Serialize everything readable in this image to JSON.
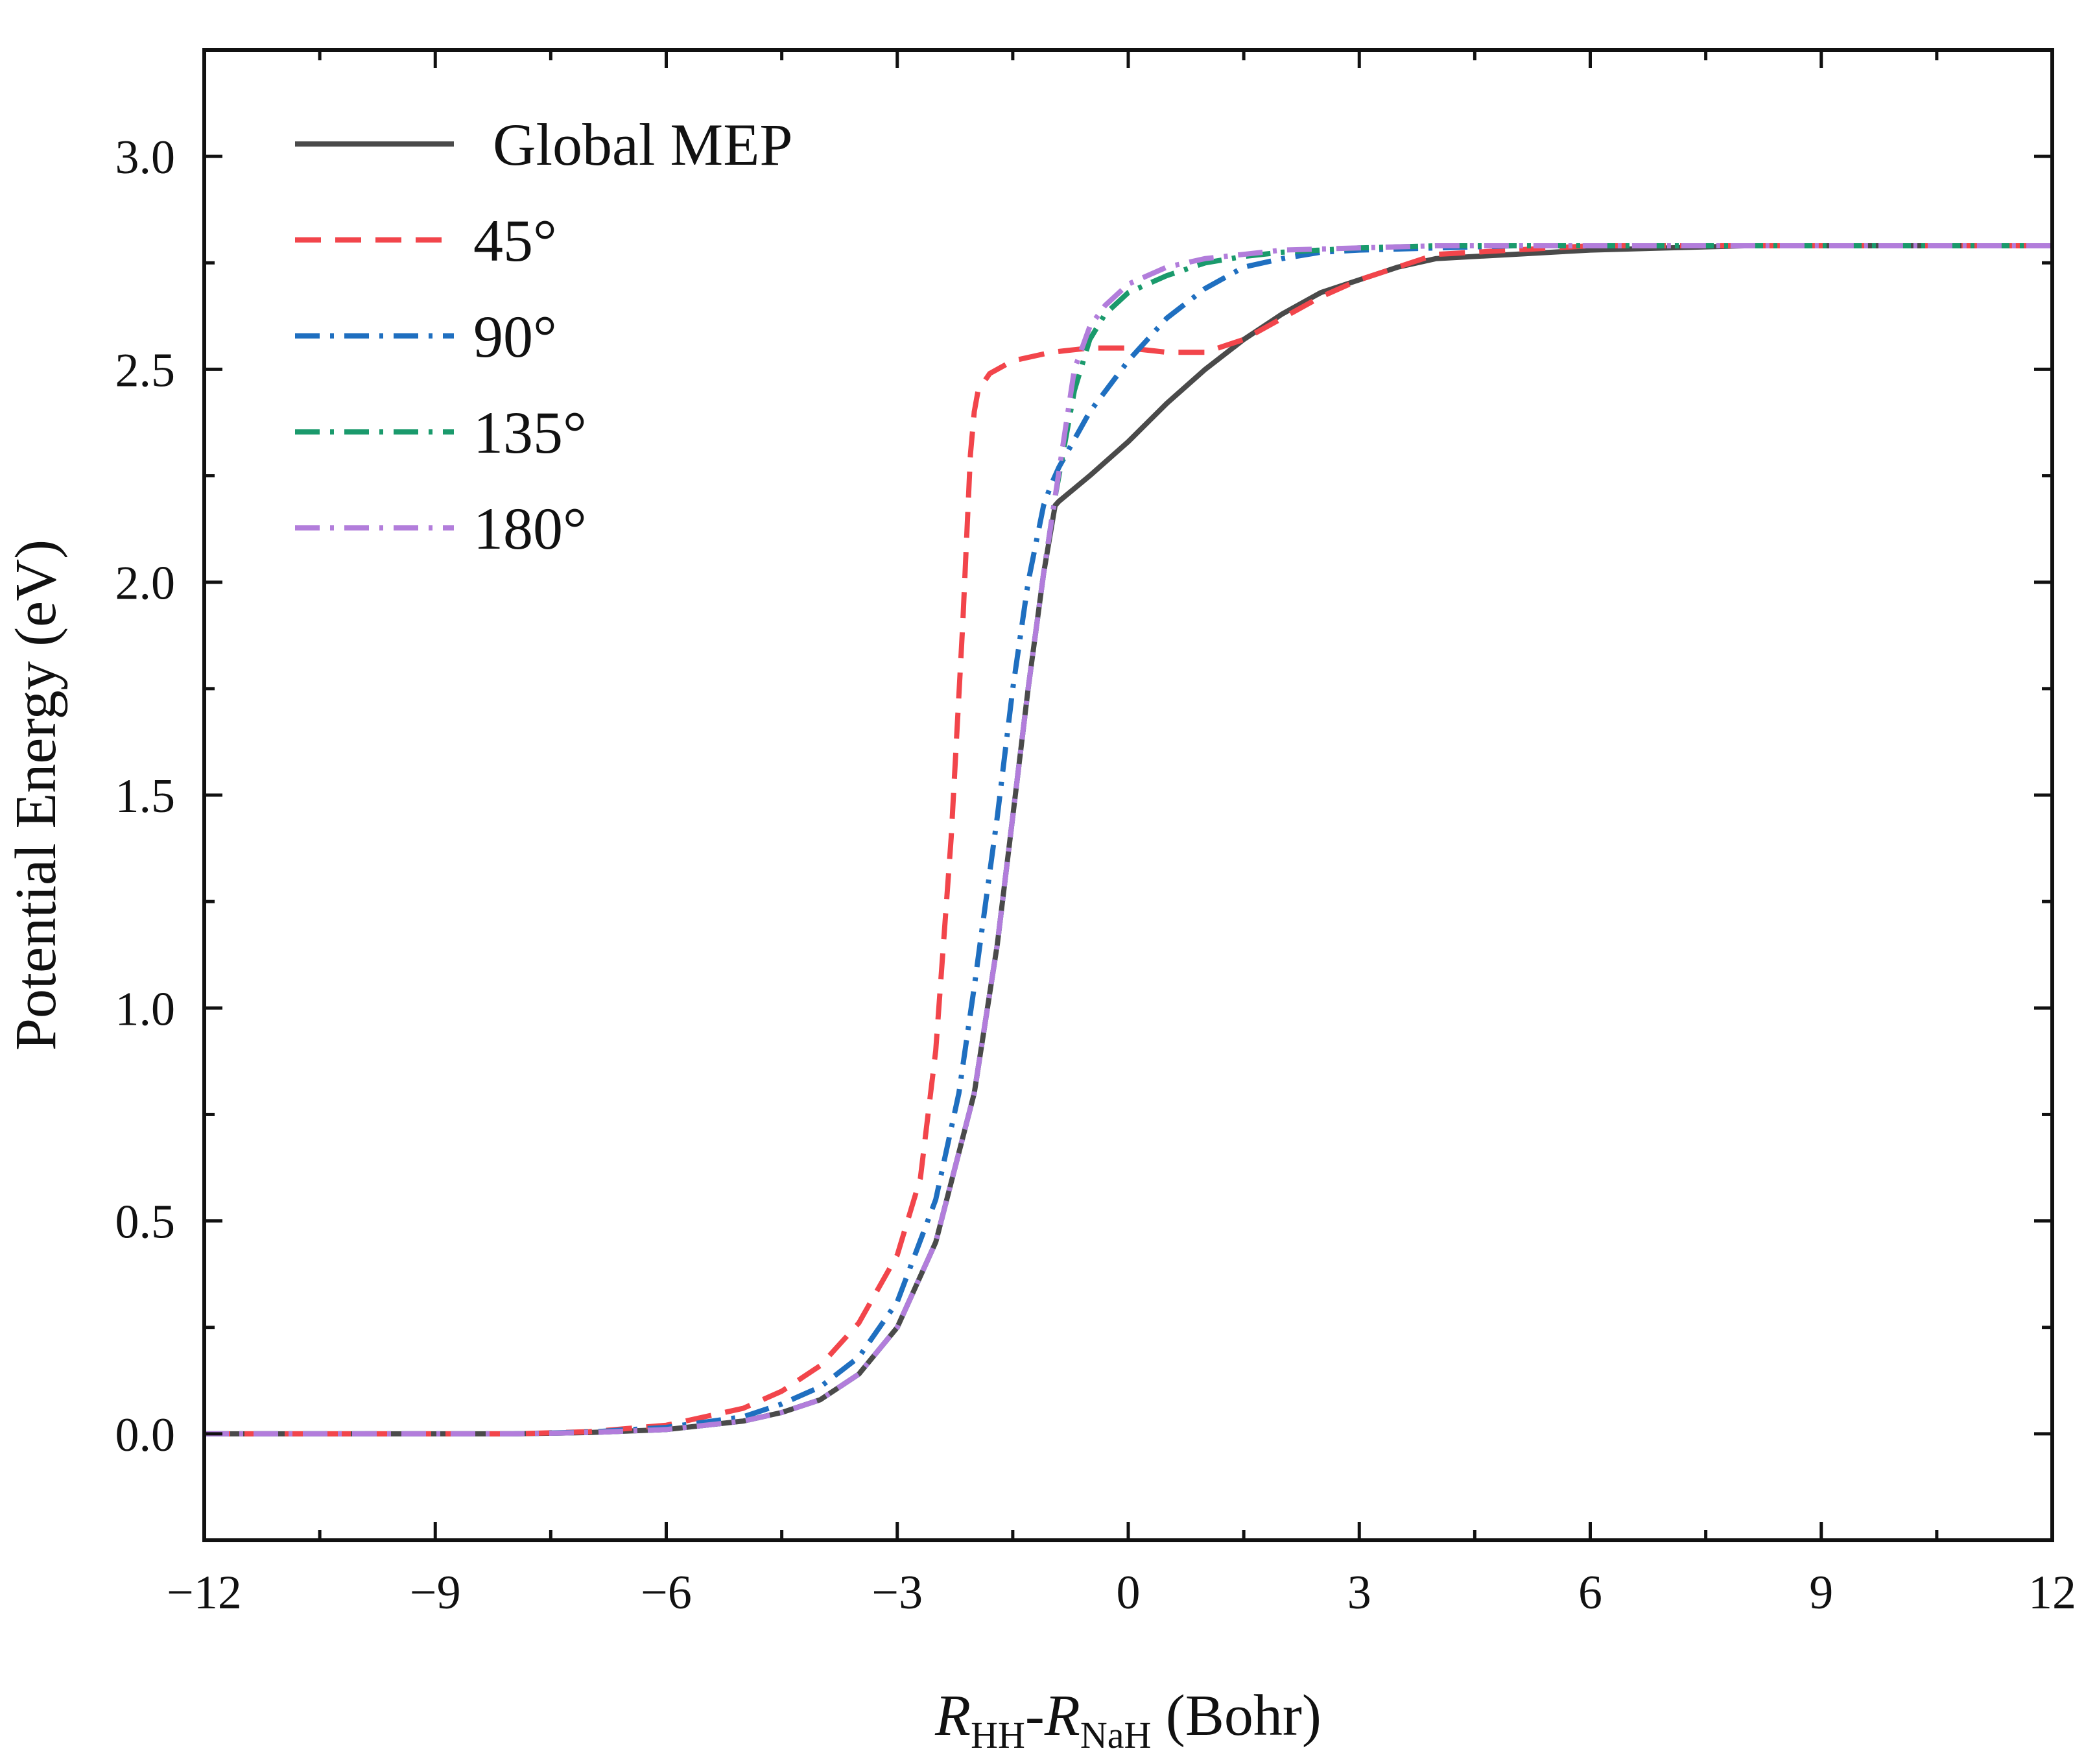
{
  "chart_data": {
    "type": "line",
    "title": "",
    "xlabel_parts": {
      "r1": "R",
      "sub1": "HH",
      "dash": "-",
      "r2": "R",
      "sub2": "NaH",
      "unit": " (Bohr)"
    },
    "ylabel": "Potential Energy (eV)",
    "xlim": [
      -12,
      12
    ],
    "ylim": [
      -0.25,
      3.25
    ],
    "xticks": [
      -12,
      -9,
      -6,
      -3,
      0,
      3,
      6,
      9,
      12
    ],
    "xtick_labels": [
      "−12",
      "−9",
      "−6",
      "−3",
      "0",
      "3",
      "6",
      "9",
      "12"
    ],
    "yticks": [
      0.0,
      0.5,
      1.0,
      1.5,
      2.0,
      2.5,
      3.0
    ],
    "ytick_labels": [
      "0.0",
      "0.5",
      "1.0",
      "1.5",
      "2.0",
      "2.5",
      "3.0"
    ],
    "grid": false,
    "legend_position": "top-left",
    "series": [
      {
        "name": "Global MEP",
        "color": "#4a4a4a",
        "dash": "solid",
        "x": [
          -12,
          -8,
          -7,
          -6,
          -5,
          -4.5,
          -4,
          -3.5,
          -3,
          -2.5,
          -2,
          -1.7,
          -1.5,
          -1.3,
          -1.1,
          -0.95,
          -0.9,
          -0.5,
          0,
          0.5,
          1,
          1.5,
          2,
          2.5,
          3,
          3.5,
          4,
          5,
          6,
          8,
          10,
          12
        ],
        "y": [
          0,
          0,
          0.003,
          0.01,
          0.03,
          0.05,
          0.08,
          0.14,
          0.25,
          0.45,
          0.8,
          1.15,
          1.45,
          1.75,
          2.02,
          2.18,
          2.19,
          2.25,
          2.33,
          2.42,
          2.5,
          2.57,
          2.63,
          2.68,
          2.71,
          2.74,
          2.76,
          2.77,
          2.78,
          2.79,
          2.79,
          2.79
        ]
      },
      {
        "name": "45°",
        "color": "#f2454b",
        "dash": "dashed",
        "x": [
          -12,
          -8,
          -7,
          -6,
          -5,
          -4.5,
          -4,
          -3.5,
          -3,
          -2.7,
          -2.5,
          -2.3,
          -2.15,
          -2.05,
          -2,
          -1.95,
          -1.8,
          -1.5,
          -1,
          -0.5,
          0,
          0.5,
          1,
          1.5,
          2,
          2.5,
          3,
          3.5,
          4,
          5,
          6,
          8,
          10,
          12
        ],
        "y": [
          0,
          0,
          0.005,
          0.02,
          0.06,
          0.1,
          0.16,
          0.26,
          0.42,
          0.6,
          0.9,
          1.4,
          1.9,
          2.3,
          2.4,
          2.45,
          2.49,
          2.52,
          2.54,
          2.55,
          2.55,
          2.54,
          2.54,
          2.57,
          2.62,
          2.67,
          2.71,
          2.74,
          2.77,
          2.78,
          2.79,
          2.79,
          2.79,
          2.79
        ]
      },
      {
        "name": "90°",
        "color": "#1f6fc0",
        "dash": "dashdot",
        "x": [
          -12,
          -8,
          -7,
          -6,
          -5,
          -4.5,
          -4,
          -3.5,
          -3,
          -2.5,
          -2.2,
          -2,
          -1.7,
          -1.5,
          -1.3,
          -1.1,
          -1.0,
          -0.9,
          -0.5,
          0,
          0.5,
          1,
          1.5,
          2,
          2.5,
          3,
          4,
          5,
          6,
          8,
          10,
          12
        ],
        "y": [
          0,
          0,
          0.004,
          0.015,
          0.04,
          0.07,
          0.11,
          0.18,
          0.31,
          0.55,
          0.8,
          1.05,
          1.45,
          1.75,
          2.0,
          2.18,
          2.23,
          2.27,
          2.4,
          2.52,
          2.62,
          2.69,
          2.74,
          2.76,
          2.775,
          2.78,
          2.785,
          2.79,
          2.79,
          2.79,
          2.79,
          2.79
        ]
      },
      {
        "name": "135°",
        "color": "#1a9a6c",
        "dash": "dashdot",
        "x": [
          -12,
          -8,
          -7,
          -6,
          -5,
          -4.5,
          -4,
          -3.5,
          -3,
          -2.5,
          -2,
          -1.7,
          -1.5,
          -1.3,
          -1.1,
          -0.95,
          -0.85,
          -0.7,
          -0.5,
          -0.3,
          0,
          0.5,
          1,
          1.5,
          2,
          3,
          4,
          6,
          8,
          10,
          12
        ],
        "y": [
          0,
          0,
          0.003,
          0.01,
          0.03,
          0.05,
          0.08,
          0.14,
          0.25,
          0.45,
          0.8,
          1.15,
          1.45,
          1.75,
          2.02,
          2.2,
          2.3,
          2.45,
          2.57,
          2.63,
          2.68,
          2.72,
          2.75,
          2.765,
          2.775,
          2.785,
          2.79,
          2.79,
          2.79,
          2.79,
          2.79
        ]
      },
      {
        "name": "180°",
        "color": "#b27ddb",
        "dash": "dashdot",
        "x": [
          -12,
          -8,
          -7,
          -6,
          -5,
          -4.5,
          -4,
          -3.5,
          -3,
          -2.5,
          -2,
          -1.7,
          -1.5,
          -1.3,
          -1.1,
          -0.95,
          -0.85,
          -0.7,
          -0.5,
          -0.3,
          0,
          0.5,
          1,
          1.5,
          2,
          3,
          4,
          6,
          8,
          10,
          12
        ],
        "y": [
          0,
          0,
          0.003,
          0.01,
          0.03,
          0.05,
          0.08,
          0.14,
          0.25,
          0.45,
          0.8,
          1.15,
          1.45,
          1.75,
          2.02,
          2.2,
          2.32,
          2.5,
          2.6,
          2.65,
          2.7,
          2.74,
          2.76,
          2.77,
          2.78,
          2.785,
          2.79,
          2.79,
          2.79,
          2.79,
          2.79
        ]
      }
    ]
  }
}
